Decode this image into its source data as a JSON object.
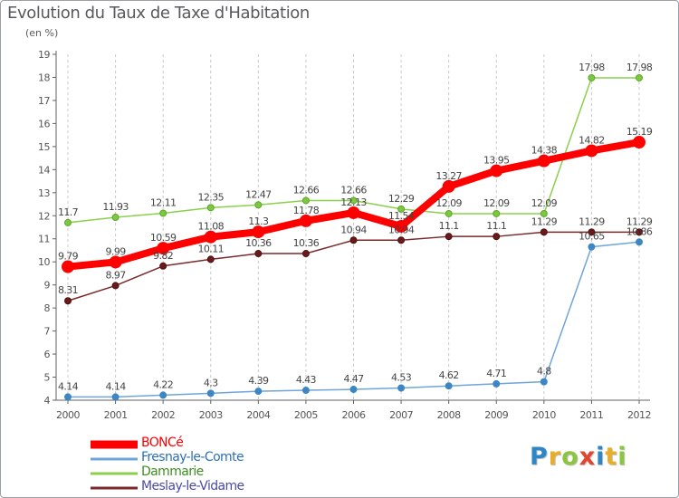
{
  "title": "Evolution du Taux de Taxe d'Habitation",
  "subtitle": "(en %)",
  "logo": {
    "text": "Proxiti",
    "letters": [
      {
        "ch": "P",
        "color": "#2f86c6"
      },
      {
        "ch": "r",
        "color": "#e8ae2a"
      },
      {
        "ch": "o",
        "color": "#8cc63f"
      },
      {
        "ch": "x",
        "color": "#e2452d"
      },
      {
        "ch": "i",
        "color": "#2f86c6"
      },
      {
        "ch": "t",
        "color": "#e8ae2a"
      },
      {
        "ch": "i",
        "color": "#8cc63f"
      }
    ]
  },
  "chart_data": {
    "type": "line",
    "title": "Evolution du Taux de Taxe d'Habitation",
    "subtitle": "(en %)",
    "xlabel": "",
    "ylabel": "",
    "x": [
      "2000",
      "2001",
      "2002",
      "2003",
      "2004",
      "2005",
      "2006",
      "2007",
      "2008",
      "2009",
      "2010",
      "2011",
      "2012"
    ],
    "ylim": [
      4,
      19
    ],
    "yticks": [
      "4",
      "5",
      "6",
      "7",
      "8",
      "9",
      "10",
      "11",
      "12",
      "13",
      "14",
      "15",
      "16",
      "17",
      "18",
      "19"
    ],
    "grid": "dashed vertical lines",
    "legend": "bottom-left",
    "series": [
      {
        "name": "BONCé",
        "color": "#ff0000",
        "values": [
          9.79,
          9.99,
          10.59,
          11.08,
          11.3,
          11.78,
          12.13,
          11.54,
          13.27,
          13.95,
          14.38,
          14.82,
          15.19
        ],
        "labels": [
          "9.79",
          "9.99",
          "10.59",
          "11.08",
          "11.3",
          "11.78",
          "12.13",
          "11.54",
          "13.27",
          "13.95",
          "14.38",
          "14.82",
          "15.19"
        ]
      },
      {
        "name": "Fresnay-le-Comte",
        "color": "#6fa5d8",
        "values": [
          4.14,
          4.14,
          4.22,
          4.3,
          4.39,
          4.43,
          4.47,
          4.53,
          4.62,
          4.71,
          4.8,
          10.65,
          10.86
        ],
        "labels": [
          "4.14",
          "4.14",
          "4.22",
          "4.3",
          "4.39",
          "4.43",
          "4.47",
          "4.53",
          "4.62",
          "4.71",
          "4.8",
          "10.65",
          "10.86"
        ]
      },
      {
        "name": "Dammarie",
        "color": "#8ccf4d",
        "values": [
          11.7,
          11.93,
          12.11,
          12.35,
          12.47,
          12.66,
          12.66,
          12.29,
          12.09,
          12.09,
          12.09,
          17.98,
          17.98
        ],
        "labels": [
          "11.7",
          "11.93",
          "12.11",
          "12.35",
          "12.47",
          "12.66",
          "12.66",
          "12.29",
          "12.09",
          "12.09",
          "12.09",
          "17.98",
          "17.98"
        ]
      },
      {
        "name": "Meslay-le-Vidame",
        "color": "#7a2a2a",
        "values": [
          8.31,
          8.97,
          9.82,
          10.11,
          10.36,
          10.36,
          10.94,
          10.94,
          11.1,
          11.1,
          11.29,
          11.29,
          11.29
        ],
        "labels": [
          "8.31",
          "8.97",
          "9.82",
          "10.11",
          "10.36",
          "10.36",
          "10.94",
          "10.94",
          "11.1",
          "11.1",
          "11.29",
          "11.29",
          "11.29"
        ]
      }
    ]
  }
}
